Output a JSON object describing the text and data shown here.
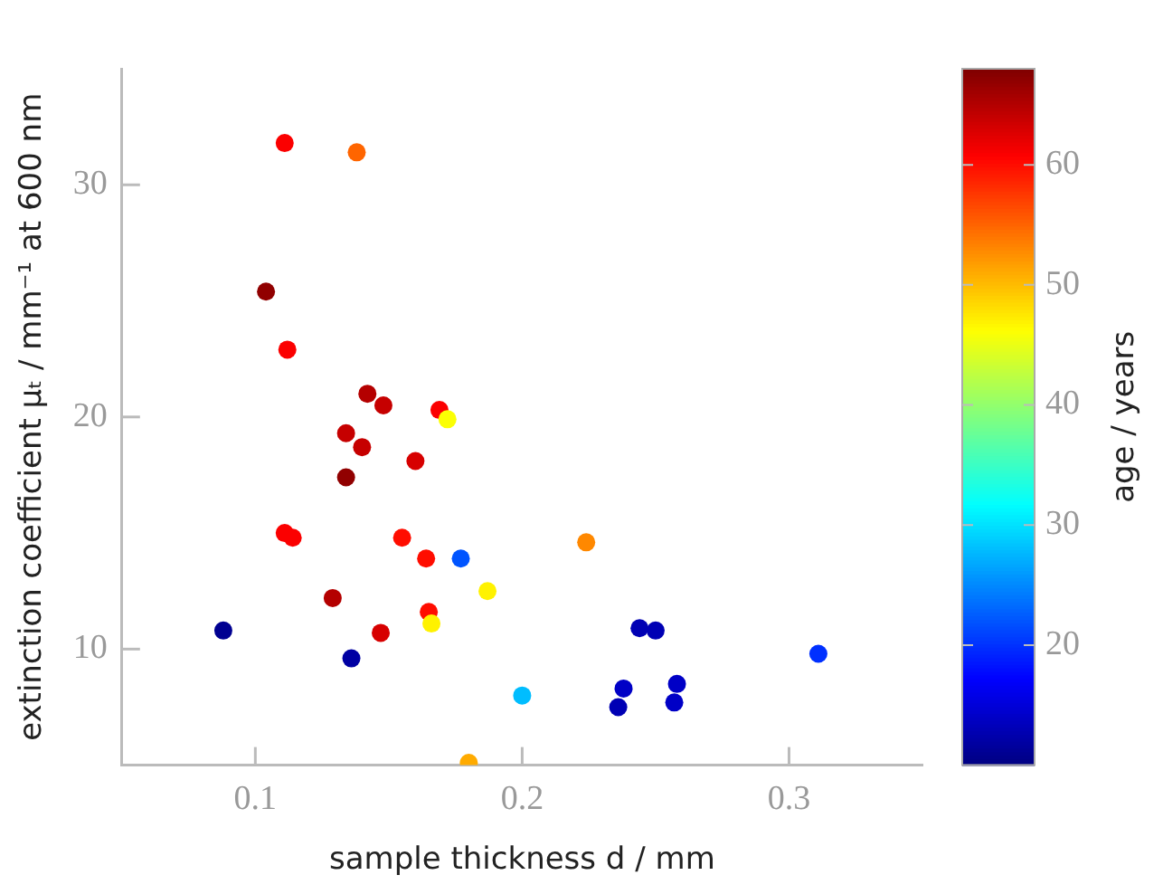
{
  "chart_data": {
    "type": "scatter",
    "xlabel": "sample thickness d / mm",
    "ylabel": "extinction coefficient μₜ / mm⁻¹ at 600 nm",
    "clabel": "age / years",
    "x": [
      0.111,
      0.138,
      0.104,
      0.112,
      0.142,
      0.148,
      0.169,
      0.172,
      0.134,
      0.14,
      0.16,
      0.134,
      0.111,
      0.114,
      0.155,
      0.164,
      0.177,
      0.187,
      0.129,
      0.165,
      0.166,
      0.147,
      0.088,
      0.136,
      0.2,
      0.18,
      0.224,
      0.244,
      0.25,
      0.311,
      0.238,
      0.258,
      0.236,
      0.257
    ],
    "values": [
      31.8,
      31.4,
      25.4,
      22.9,
      21.0,
      20.5,
      20.3,
      19.9,
      19.3,
      18.7,
      18.1,
      17.4,
      15.0,
      14.8,
      14.8,
      13.9,
      13.9,
      12.5,
      12.2,
      11.6,
      11.1,
      10.7,
      10.8,
      9.6,
      8.0,
      5.1,
      14.6,
      10.9,
      10.8,
      9.8,
      8.3,
      8.5,
      7.5,
      7.7
    ],
    "cvalues": [
      61,
      55,
      67,
      61,
      65,
      64,
      61,
      46,
      64,
      64,
      63,
      67,
      61,
      61,
      60,
      60,
      22,
      47,
      65,
      60,
      47,
      63,
      11,
      12,
      28,
      51,
      53,
      13,
      13,
      20,
      14,
      14,
      13,
      14
    ],
    "xlim": [
      0.05,
      0.35
    ],
    "ylim": [
      5,
      35
    ],
    "xticks": [
      0.1,
      0.2,
      0.3
    ],
    "yticks": [
      10,
      20,
      30
    ],
    "clim": [
      10,
      68
    ],
    "cticks": [
      20,
      30,
      40,
      50,
      60
    ],
    "grid": false,
    "legend": false,
    "marker": "circle"
  }
}
